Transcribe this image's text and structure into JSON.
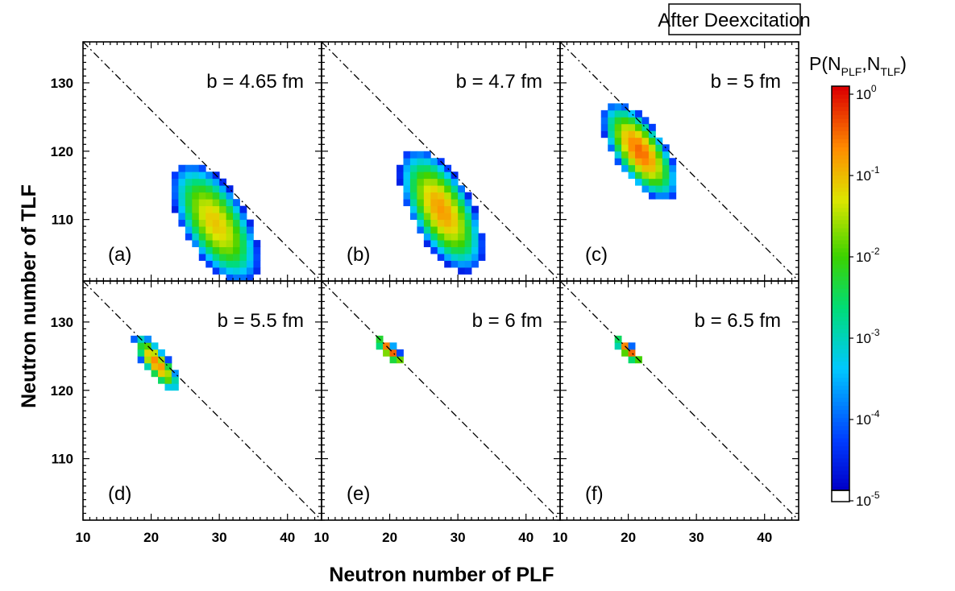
{
  "chart_data": {
    "type": "heatmap",
    "header": "After Deexcitation",
    "xlabel": "Neutron number of PLF",
    "ylabel": "Neutron number of TLF",
    "xlim": [
      10,
      45
    ],
    "ylim": [
      101,
      136
    ],
    "xticks": [
      "10",
      "20",
      "30",
      "40"
    ],
    "yticks": [
      "110",
      "120",
      "130"
    ],
    "colorbar": {
      "title_main": "P(N",
      "title_sub1": "PLF",
      "title_sep": ",N",
      "title_sub2": "TLF",
      "title_end": ")",
      "scale": "log",
      "range": [
        1e-05,
        1
      ],
      "tick_base": "10",
      "tick_exponents": [
        "0",
        "-1",
        "-2",
        "-3",
        "-4",
        "-5"
      ]
    },
    "reference_line": {
      "style": "dash-dot",
      "relation": "N_PLF + N_TLF = 146"
    },
    "panels": [
      {
        "label": "(a)",
        "title": "b = 4.65 fm",
        "center_x": 29.4,
        "center_y": 109.5,
        "peak_log": -1.15,
        "sx": 2.6,
        "sy": 3.6,
        "rho": -0.6,
        "cut": -4.7
      },
      {
        "label": "(b)",
        "title": "b = 4.7 fm",
        "center_x": 27.6,
        "center_y": 111.4,
        "peak_log": -0.85,
        "sx": 2.4,
        "sy": 3.5,
        "rho": -0.6,
        "cut": -4.7
      },
      {
        "label": "(c)",
        "title": "b = 5 fm",
        "center_x": 21.7,
        "center_y": 120.0,
        "peak_log": -0.55,
        "sx": 2.1,
        "sy": 2.7,
        "rho": -0.65,
        "cut": -4.6
      },
      {
        "label": "(d)",
        "title": "b = 5.5 fm",
        "center_x": 20.8,
        "center_y": 124.0,
        "peak_log": -0.7,
        "sx": 1.35,
        "sy": 1.7,
        "rho": -0.8,
        "cut": -4.5
      },
      {
        "label": "(e)",
        "title": "b = 6 fm",
        "center_x": 20.0,
        "center_y": 125.8,
        "peak_log": -0.3,
        "sx": 0.9,
        "sy": 0.9,
        "rho": -0.85,
        "cut": -4.4
      },
      {
        "label": "(f)",
        "title": "b = 6.5 fm",
        "center_x": 20.0,
        "center_y": 125.8,
        "peak_log": -0.3,
        "sx": 0.85,
        "sy": 0.85,
        "rho": -0.85,
        "cut": -4.4
      }
    ]
  }
}
